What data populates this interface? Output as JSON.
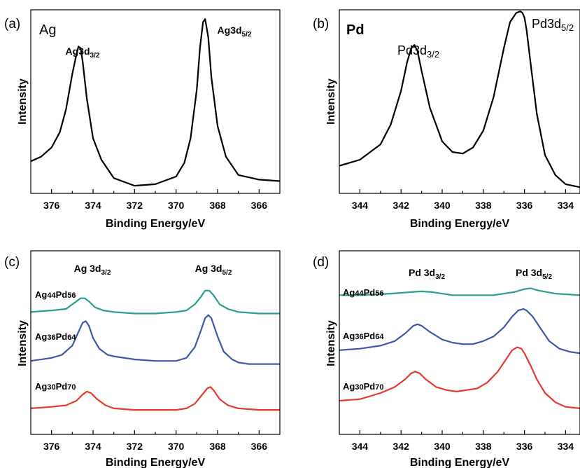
{
  "chart_data": [
    {
      "panel": "(a)",
      "type": "line",
      "xlabel": "Binding Energy/eV",
      "ylabel": "Intensity",
      "xlim": [
        377,
        365
      ],
      "ylim": [
        0,
        1.2
      ],
      "x_reversed": true,
      "xticks": [
        376,
        374,
        372,
        370,
        368,
        366
      ],
      "grid": false,
      "legend": "none",
      "inset_label": "Ag",
      "annotations": [
        {
          "main": "Ag3d",
          "sub": "3/2"
        },
        {
          "main": "Ag3d",
          "sub": "5/2"
        }
      ],
      "series": [
        {
          "color": "#000000",
          "x": [
            377.0,
            376.5,
            376.0,
            375.6,
            375.3,
            375.0,
            374.8,
            374.7,
            374.6,
            374.5,
            374.3,
            374.0,
            373.6,
            373.0,
            372.0,
            371.0,
            370.0,
            369.6,
            369.3,
            369.0,
            368.85,
            368.7,
            368.6,
            368.45,
            368.3,
            368.0,
            367.6,
            367.0,
            366.0,
            365.0
          ],
          "y": [
            0.21,
            0.24,
            0.3,
            0.4,
            0.55,
            0.78,
            0.91,
            0.96,
            0.95,
            0.86,
            0.62,
            0.36,
            0.22,
            0.1,
            0.05,
            0.06,
            0.11,
            0.2,
            0.36,
            0.68,
            0.95,
            1.12,
            1.14,
            1.02,
            0.76,
            0.44,
            0.24,
            0.12,
            0.09,
            0.08
          ]
        }
      ]
    },
    {
      "panel": "(b)",
      "type": "line",
      "xlabel": "Binding Energy/eV",
      "ylabel": "Intensity",
      "xlim": [
        345,
        333.3
      ],
      "ylim": [
        0,
        1.2
      ],
      "x_reversed": true,
      "xticks": [
        344,
        342,
        340,
        338,
        336,
        334
      ],
      "grid": false,
      "legend": "none",
      "inset_label": "Pd",
      "annotations": [
        {
          "main": "Pd3d",
          "sub": "3/2"
        },
        {
          "main": "Pd3d",
          "sub": "5/2"
        }
      ],
      "series": [
        {
          "color": "#000000",
          "x": [
            345.0,
            344.0,
            343.0,
            342.5,
            342.0,
            341.7,
            341.5,
            341.35,
            341.2,
            341.0,
            340.6,
            340.0,
            339.5,
            339.0,
            338.5,
            338.0,
            337.5,
            337.0,
            336.7,
            336.4,
            336.2,
            336.1,
            336.0,
            335.9,
            335.7,
            335.4,
            335.0,
            334.5,
            334.0,
            333.3
          ],
          "y": [
            0.18,
            0.22,
            0.32,
            0.45,
            0.67,
            0.86,
            0.95,
            0.97,
            0.93,
            0.8,
            0.56,
            0.34,
            0.27,
            0.26,
            0.3,
            0.41,
            0.63,
            0.95,
            1.12,
            1.18,
            1.19,
            1.18,
            1.15,
            1.07,
            0.85,
            0.52,
            0.25,
            0.12,
            0.06,
            0.04
          ]
        }
      ]
    },
    {
      "panel": "(c)",
      "type": "line",
      "xlabel": "Binding Energy/eV",
      "ylabel": "Intensity",
      "xlim": [
        377,
        365
      ],
      "ylim": [
        0,
        1.2
      ],
      "x_reversed": true,
      "xticks": [
        376,
        374,
        372,
        370,
        368,
        366
      ],
      "grid": false,
      "legend": "none",
      "annotations": [
        {
          "main": "Ag 3d",
          "sub": "3/2"
        },
        {
          "main": "Ag 3d",
          "sub": "5/2"
        }
      ],
      "series": [
        {
          "name_parts": [
            "Ag",
            "44",
            "Pd",
            "56"
          ],
          "color": "#2a9d8f",
          "x": [
            377.0,
            376.0,
            375.3,
            374.9,
            374.6,
            374.4,
            374.2,
            373.9,
            373.5,
            373.0,
            372.0,
            371.0,
            370.0,
            369.5,
            369.1,
            368.8,
            368.6,
            368.4,
            368.2,
            367.9,
            367.5,
            367.0,
            366.0,
            365.0
          ],
          "y": [
            0.8,
            0.81,
            0.82,
            0.86,
            0.89,
            0.89,
            0.87,
            0.83,
            0.81,
            0.8,
            0.79,
            0.79,
            0.8,
            0.81,
            0.85,
            0.9,
            0.94,
            0.94,
            0.91,
            0.85,
            0.82,
            0.8,
            0.79,
            0.79
          ]
        },
        {
          "name_parts": [
            "Ag",
            "36",
            "Pd",
            "64"
          ],
          "color": "#3f57a8",
          "x": [
            377.0,
            376.0,
            375.5,
            375.0,
            374.7,
            374.5,
            374.35,
            374.2,
            374.0,
            373.7,
            373.3,
            373.0,
            372.0,
            371.0,
            370.0,
            369.5,
            369.1,
            368.8,
            368.6,
            368.45,
            368.3,
            368.0,
            367.7,
            367.3,
            367.0,
            366.5,
            366.0,
            365.0
          ],
          "y": [
            0.48,
            0.5,
            0.52,
            0.58,
            0.67,
            0.73,
            0.74,
            0.71,
            0.63,
            0.56,
            0.52,
            0.51,
            0.49,
            0.48,
            0.48,
            0.5,
            0.57,
            0.68,
            0.76,
            0.78,
            0.76,
            0.64,
            0.54,
            0.49,
            0.47,
            0.46,
            0.46,
            0.46
          ]
        },
        {
          "name_parts": [
            "Ag",
            "30",
            "Pd",
            "70"
          ],
          "color": "#e63a2e",
          "x": [
            377.0,
            376.0,
            375.3,
            374.8,
            374.5,
            374.3,
            374.1,
            373.8,
            373.4,
            373.0,
            372.0,
            371.0,
            370.0,
            369.5,
            369.1,
            368.8,
            368.5,
            368.35,
            368.2,
            367.9,
            367.5,
            367.0,
            366.0,
            365.0
          ],
          "y": [
            0.17,
            0.18,
            0.19,
            0.22,
            0.26,
            0.28,
            0.27,
            0.23,
            0.19,
            0.17,
            0.16,
            0.16,
            0.16,
            0.17,
            0.2,
            0.25,
            0.3,
            0.31,
            0.29,
            0.23,
            0.19,
            0.17,
            0.16,
            0.16
          ]
        }
      ]
    },
    {
      "panel": "(d)",
      "type": "line",
      "xlabel": "Binding Energy/eV",
      "ylabel": "Intensity",
      "xlim": [
        345,
        333.3
      ],
      "ylim": [
        0,
        1.2
      ],
      "x_reversed": true,
      "xticks": [
        344,
        342,
        340,
        338,
        336,
        334
      ],
      "grid": false,
      "legend": "none",
      "annotations": [
        {
          "main": "Pd 3d",
          "sub": "3/2"
        },
        {
          "main": "Pd 3d",
          "sub": "5/2"
        }
      ],
      "series": [
        {
          "name_parts": [
            "Ag",
            "44",
            "Pd",
            "56"
          ],
          "color": "#2a9d8f",
          "x": [
            345.0,
            344.0,
            342.5,
            341.5,
            341.0,
            340.5,
            339.5,
            338.5,
            337.5,
            336.5,
            336.0,
            335.7,
            335.3,
            334.5,
            333.3
          ],
          "y": [
            0.91,
            0.91,
            0.92,
            0.93,
            0.935,
            0.93,
            0.91,
            0.91,
            0.91,
            0.93,
            0.95,
            0.955,
            0.94,
            0.92,
            0.91
          ]
        },
        {
          "name_parts": [
            "Ag",
            "36",
            "Pd",
            "64"
          ],
          "color": "#3f57a8",
          "x": [
            345.0,
            344.0,
            343.0,
            342.3,
            341.8,
            341.4,
            341.2,
            341.0,
            340.6,
            340.0,
            339.5,
            339.0,
            338.5,
            338.0,
            337.5,
            337.0,
            336.6,
            336.3,
            336.05,
            335.9,
            335.6,
            335.2,
            334.8,
            334.3,
            333.8,
            333.3
          ],
          "y": [
            0.55,
            0.56,
            0.58,
            0.61,
            0.66,
            0.71,
            0.72,
            0.71,
            0.67,
            0.62,
            0.6,
            0.59,
            0.59,
            0.61,
            0.64,
            0.7,
            0.77,
            0.81,
            0.82,
            0.81,
            0.77,
            0.69,
            0.61,
            0.56,
            0.54,
            0.53
          ]
        },
        {
          "name_parts": [
            "Ag",
            "30",
            "Pd",
            "70"
          ],
          "color": "#e63a2e",
          "x": [
            345.0,
            344.0,
            343.0,
            342.3,
            341.8,
            341.5,
            341.3,
            341.1,
            340.8,
            340.3,
            339.8,
            339.3,
            338.8,
            338.3,
            337.8,
            337.3,
            336.9,
            336.6,
            336.35,
            336.15,
            336.0,
            335.7,
            335.4,
            335.0,
            334.5,
            334.0,
            333.3
          ],
          "y": [
            0.22,
            0.23,
            0.27,
            0.31,
            0.36,
            0.4,
            0.41,
            0.4,
            0.36,
            0.31,
            0.29,
            0.28,
            0.29,
            0.3,
            0.34,
            0.41,
            0.49,
            0.55,
            0.57,
            0.56,
            0.53,
            0.45,
            0.36,
            0.27,
            0.21,
            0.18,
            0.17
          ]
        }
      ]
    }
  ]
}
